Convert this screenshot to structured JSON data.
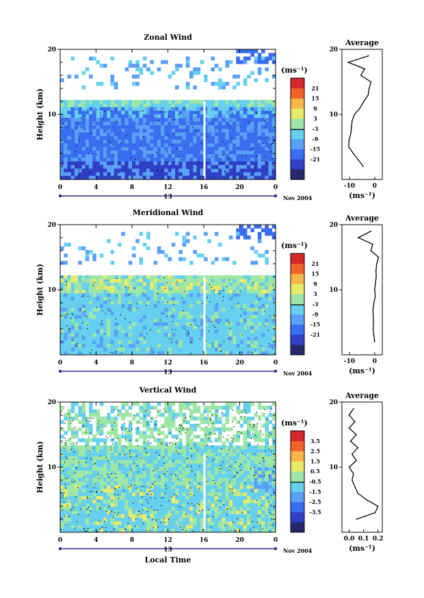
{
  "chart_data": [
    {
      "type": "heatmap",
      "title": "Zonal Wind",
      "ylabel": "Height (km)",
      "y_ticks": [
        "20",
        "10"
      ],
      "x_ticks": [
        "0",
        "4",
        "8",
        "12",
        "16",
        "20",
        "0"
      ],
      "date_day": "13",
      "date_month": "Nov 2004",
      "colorbar_unit": "(ms⁻¹)",
      "colorbar_ticks": [
        "21",
        "15",
        "9",
        "3",
        "-3",
        "-9",
        "-15",
        "-21"
      ],
      "colorbar_colors": [
        "#28286e",
        "#2f3fc6",
        "#3a6ef0",
        "#5aa0f5",
        "#66d0ee",
        "#9ee6a6",
        "#e8ea6a",
        "#f7b64a",
        "#f0622a",
        "#d4282a"
      ],
      "profile_title": "Average",
      "profile_x_ticks": [
        "-10",
        "0"
      ],
      "profile_xlabel": "(ms⁻¹)",
      "profile_y_ticks": [
        "20",
        "10"
      ],
      "profile": {
        "height_km": [
          2,
          3,
          4,
          5,
          6,
          7,
          8,
          9,
          10,
          11,
          12,
          13,
          14,
          15,
          16,
          17,
          18,
          19
        ],
        "value": [
          -4.5,
          -6.5,
          -8.5,
          -10.3,
          -10.2,
          -9.5,
          -9.2,
          -9.0,
          -8.0,
          -5.8,
          -4.3,
          -2.6,
          -2.2,
          -1.5,
          -5.5,
          -4.0,
          -10.5,
          -2.5
        ]
      }
    },
    {
      "type": "heatmap",
      "title": "Meridional Wind",
      "ylabel": "Height (km)",
      "y_ticks": [
        "20",
        "10"
      ],
      "x_ticks": [
        "0",
        "4",
        "8",
        "12",
        "16",
        "20",
        "0"
      ],
      "date_day": "13",
      "date_month": "Nov 2004",
      "colorbar_unit": "(ms⁻¹)",
      "colorbar_ticks": [
        "21",
        "15",
        "9",
        "3",
        "-3",
        "-9",
        "-15",
        "-21"
      ],
      "colorbar_colors": [
        "#28286e",
        "#2f3fc6",
        "#3a6ef0",
        "#5aa0f5",
        "#66d0ee",
        "#9ee6a6",
        "#e8ea6a",
        "#f7b64a",
        "#f0622a",
        "#d4282a"
      ],
      "profile_title": "Average",
      "profile_x_ticks": [
        "-10",
        "0"
      ],
      "profile_xlabel": "(ms⁻¹)",
      "profile_y_ticks": [
        "20",
        "10"
      ],
      "profile": {
        "height_km": [
          2,
          3,
          4,
          5,
          6,
          7,
          8,
          9,
          10,
          11,
          12,
          13,
          14,
          15,
          16,
          17,
          18,
          19
        ],
        "value": [
          0.0,
          -0.4,
          -0.6,
          -0.5,
          -0.6,
          -0.7,
          -0.3,
          0.2,
          0.0,
          0.3,
          0.6,
          0.5,
          0.8,
          1.5,
          -1.5,
          -0.8,
          -6.5,
          -1.5
        ]
      }
    },
    {
      "type": "heatmap",
      "title": "Vertical Wind",
      "ylabel": "Height (km)",
      "y_ticks": [
        "20",
        "10"
      ],
      "x_ticks": [
        "0",
        "4",
        "8",
        "12",
        "16",
        "20",
        "0"
      ],
      "date_day": "13",
      "date_month": "Nov 2004",
      "xlabel": "Local Time",
      "colorbar_unit": "(ms⁻¹)",
      "colorbar_ticks": [
        "3.5",
        "2.5",
        "1.5",
        "0.5",
        "-0.5",
        "-1.5",
        "-2.5",
        "-3.5"
      ],
      "colorbar_colors": [
        "#28286e",
        "#2f3fc6",
        "#3a6ef0",
        "#5aa0f5",
        "#66d0ee",
        "#9ee6a6",
        "#e8ea6a",
        "#f7b64a",
        "#f0622a",
        "#d4282a"
      ],
      "profile_title": "Average",
      "profile_x_ticks": [
        "0.0",
        "0.1",
        "0.2"
      ],
      "profile_xlabel": "(ms⁻¹)",
      "profile_y_ticks": [
        "20",
        "10"
      ],
      "profile": {
        "height_km": [
          2,
          3,
          4,
          5,
          6,
          7,
          8,
          9,
          10,
          11,
          12,
          13,
          14,
          15,
          16,
          17,
          18,
          19
        ],
        "value": [
          0.05,
          0.18,
          0.2,
          0.12,
          0.06,
          0.04,
          0.02,
          0.03,
          0.0,
          0.05,
          0.02,
          0.06,
          0.01,
          0.05,
          0.0,
          0.04,
          0.0,
          0.03
        ]
      }
    }
  ]
}
